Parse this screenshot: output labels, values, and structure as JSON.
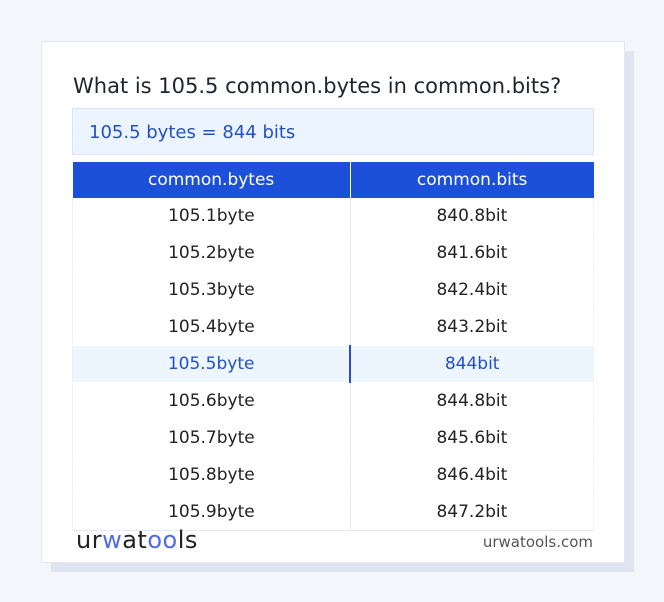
{
  "question": "What is 105.5 common.bytes in common.bits?",
  "result": "105.5 bytes = 844 bits",
  "table": {
    "headers": [
      "common.bytes",
      "common.bits"
    ],
    "rows": [
      [
        "105.1byte",
        "840.8bit"
      ],
      [
        "105.2byte",
        "841.6bit"
      ],
      [
        "105.3byte",
        "842.4bit"
      ],
      [
        "105.4byte",
        "843.2bit"
      ],
      [
        "105.5byte",
        "844bit"
      ],
      [
        "105.6byte",
        "844.8bit"
      ],
      [
        "105.7byte",
        "845.6bit"
      ],
      [
        "105.8byte",
        "846.4bit"
      ],
      [
        "105.9byte",
        "847.2bit"
      ]
    ],
    "highlighted_row": 4
  },
  "footer": {
    "logo": "urwatools",
    "site": "urwatools.com"
  },
  "colors": {
    "accent": "#1c50d8",
    "highlight_bg": "#edf5ff",
    "highlight_text": "#2350c4"
  }
}
